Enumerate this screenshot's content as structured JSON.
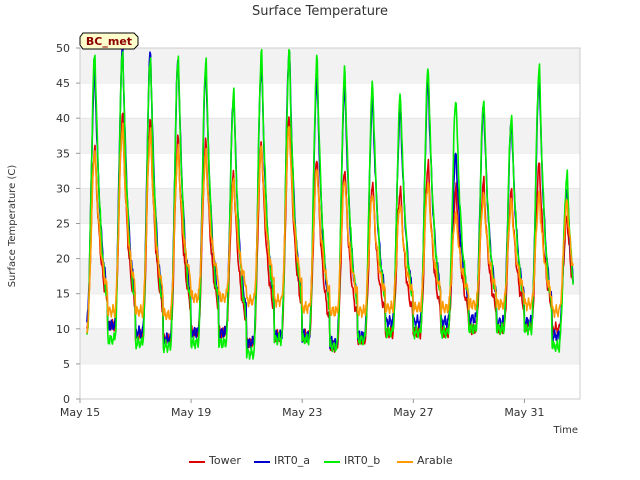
{
  "chart_data": {
    "type": "line",
    "title": "Surface Temperature",
    "xlabel": "Time",
    "ylabel": "Surface Temperature (C)",
    "site_badge": "BC_met",
    "ylim": [
      0,
      50
    ],
    "yticks": [
      0,
      5,
      10,
      15,
      20,
      25,
      30,
      35,
      40,
      45,
      50
    ],
    "xlim": [
      "2024-05-15",
      "2024-06-02"
    ],
    "xticks": [
      {
        "date": "2024-05-15",
        "label": "May 15"
      },
      {
        "date": "2024-05-19",
        "label": "May 19"
      },
      {
        "date": "2024-05-23",
        "label": "May 23"
      },
      {
        "date": "2024-05-27",
        "label": "May 27"
      },
      {
        "date": "2024-05-31",
        "label": "May 31"
      }
    ],
    "grid": "horizontal bands",
    "legend_position": "bottom",
    "day_starts": [
      "2024-05-15",
      "2024-05-16",
      "2024-05-17",
      "2024-05-18",
      "2024-05-19",
      "2024-05-20",
      "2024-05-21",
      "2024-05-22",
      "2024-05-23",
      "2024-05-24",
      "2024-05-25",
      "2024-05-26",
      "2024-05-27",
      "2024-05-28",
      "2024-05-29",
      "2024-05-30",
      "2024-05-31",
      "2024-06-01"
    ],
    "series": [
      {
        "name": "Tower",
        "color": "#dd0000",
        "daily_min": [
          10.5,
          10.5,
          9.0,
          8.5,
          9.5,
          9.5,
          8.0,
          9.0,
          9.0,
          7.5,
          8.5,
          9.5,
          9.5,
          9.5,
          10.0,
          10.0,
          10.5,
          10.0
        ],
        "daily_max": [
          36.0,
          40.5,
          39.5,
          37.0,
          36.5,
          32.0,
          36.5,
          40.5,
          34.5,
          33.0,
          31.0,
          30.0,
          33.5,
          30.0,
          31.0,
          29.5,
          33.5,
          26.0
        ]
      },
      {
        "name": "IRT0_a",
        "color": "#0000cc",
        "daily_min": [
          11.0,
          10.5,
          9.5,
          8.5,
          9.5,
          9.5,
          8.0,
          9.0,
          9.0,
          8.0,
          9.0,
          11.0,
          11.0,
          11.0,
          11.5,
          11.0,
          11.0,
          9.0
        ],
        "daily_max": [
          47.0,
          50.0,
          49.5,
          48.5,
          47.0,
          43.5,
          48.0,
          50.0,
          46.0,
          45.0,
          43.0,
          41.5,
          45.5,
          35.0,
          42.0,
          39.5,
          45.5,
          30.0
        ]
      },
      {
        "name": "IRT0_b",
        "color": "#00ee00",
        "daily_min": [
          9.0,
          8.5,
          8.0,
          7.5,
          8.0,
          8.0,
          6.5,
          8.5,
          8.5,
          7.5,
          8.5,
          9.5,
          9.5,
          9.5,
          10.0,
          10.0,
          10.0,
          7.5
        ],
        "daily_max": [
          49.5,
          50.0,
          49.0,
          49.0,
          48.5,
          44.0,
          49.5,
          49.5,
          48.5,
          47.0,
          45.0,
          43.5,
          47.5,
          43.0,
          43.0,
          40.5,
          47.5,
          32.0
        ]
      },
      {
        "name": "Arable",
        "color": "#ff9900",
        "daily_min": [
          10.0,
          12.5,
          12.5,
          12.0,
          14.5,
          14.5,
          14.0,
          14.0,
          13.0,
          12.5,
          12.5,
          13.0,
          13.0,
          13.0,
          13.5,
          13.5,
          13.5,
          12.5
        ],
        "daily_max": [
          35.5,
          39.0,
          38.0,
          35.5,
          35.0,
          31.0,
          36.0,
          39.0,
          33.0,
          31.5,
          29.5,
          28.0,
          31.0,
          26.5,
          29.0,
          28.0,
          29.0,
          28.0
        ]
      }
    ]
  }
}
